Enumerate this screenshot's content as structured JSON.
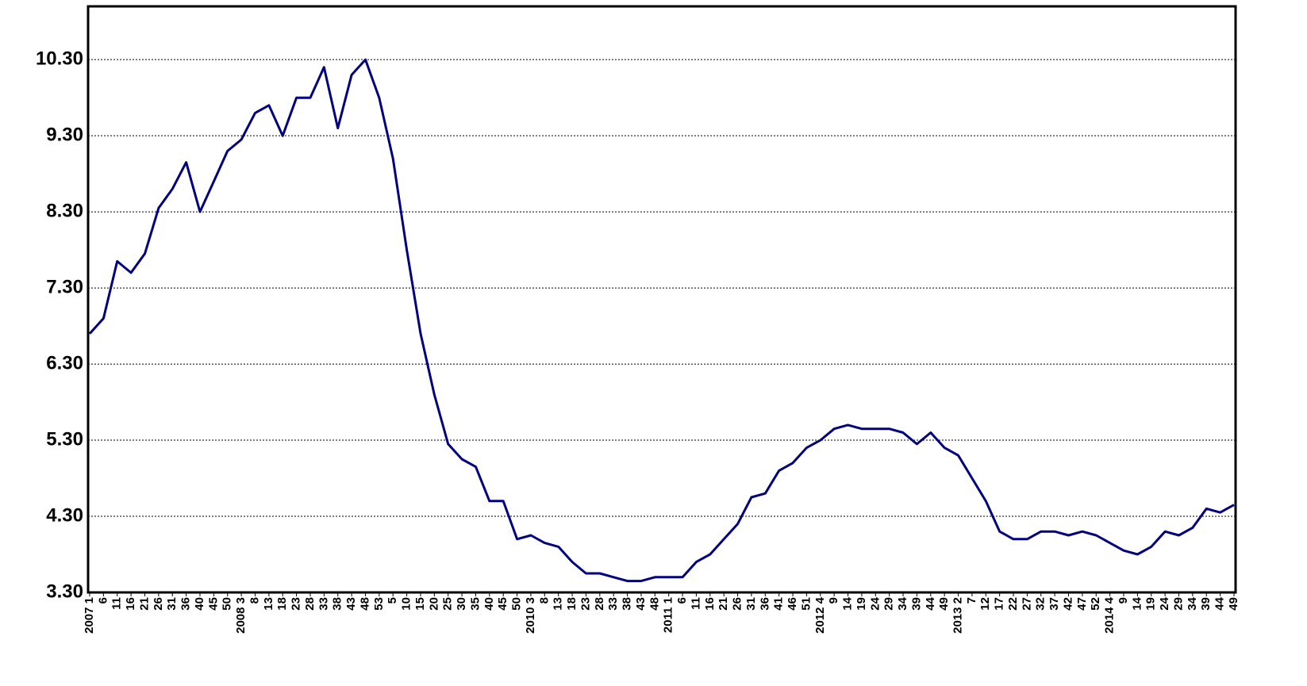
{
  "chart_data": {
    "type": "line",
    "categories": [
      "2007 1",
      "6",
      "11",
      "16",
      "21",
      "26",
      "31",
      "36",
      "40",
      "45",
      "50",
      "2008 3",
      "8",
      "13",
      "18",
      "23",
      "28",
      "33",
      "38",
      "43",
      "48",
      "53",
      "5",
      "10",
      "15",
      "20",
      "25",
      "30",
      "35",
      "40",
      "45",
      "50",
      "2010 3",
      "8",
      "13",
      "18",
      "23",
      "28",
      "33",
      "38",
      "43",
      "48",
      "2011 1",
      "6",
      "11",
      "16",
      "21",
      "26",
      "31",
      "36",
      "41",
      "46",
      "51",
      "2012 4",
      "9",
      "14",
      "19",
      "24",
      "29",
      "34",
      "39",
      "44",
      "49",
      "2013 2",
      "7",
      "12",
      "17",
      "22",
      "27",
      "32",
      "37",
      "42",
      "47",
      "52",
      "2014 4",
      "9",
      "14",
      "19",
      "24",
      "29",
      "34",
      "39",
      "44",
      "49"
    ],
    "series": [
      {
        "color": "#000080",
        "values": [
          6.7,
          6.9,
          7.65,
          7.5,
          7.75,
          8.35,
          8.6,
          8.95,
          8.3,
          8.7,
          9.1,
          9.25,
          9.6,
          9.7,
          9.3,
          9.8,
          9.8,
          10.2,
          9.4,
          10.1,
          10.3,
          9.8,
          9.0,
          7.8,
          6.7,
          5.9,
          5.25,
          5.05,
          4.95,
          4.5,
          4.5,
          4.0,
          4.05,
          3.95,
          3.9,
          3.7,
          3.55,
          3.55,
          3.5,
          3.45,
          3.45,
          3.5,
          3.5,
          3.5,
          3.7,
          3.8,
          4.0,
          4.2,
          4.55,
          4.6,
          4.9,
          5.0,
          5.2,
          5.3,
          5.45,
          5.5,
          5.45,
          5.45,
          5.45,
          5.4,
          5.25,
          5.4,
          5.2,
          5.1,
          4.8,
          4.5,
          4.1,
          4.0,
          4.0,
          4.1,
          4.1,
          4.05,
          4.1,
          4.05,
          3.95,
          3.85,
          3.8,
          3.9,
          4.1,
          4.05,
          4.15,
          4.4,
          4.35,
          4.45
        ]
      }
    ],
    "ylim": [
      3.3,
      11.0
    ],
    "yticks": [
      {
        "value": 3.3,
        "label": "3.30"
      },
      {
        "value": 4.3,
        "label": "4.30"
      },
      {
        "value": 5.3,
        "label": "5.30"
      },
      {
        "value": 6.3,
        "label": "6.30"
      },
      {
        "value": 7.3,
        "label": "7.30"
      },
      {
        "value": 8.3,
        "label": "8.30"
      },
      {
        "value": 9.3,
        "label": "9.30"
      },
      {
        "value": 10.3,
        "label": "10.30"
      }
    ],
    "grid": true
  }
}
